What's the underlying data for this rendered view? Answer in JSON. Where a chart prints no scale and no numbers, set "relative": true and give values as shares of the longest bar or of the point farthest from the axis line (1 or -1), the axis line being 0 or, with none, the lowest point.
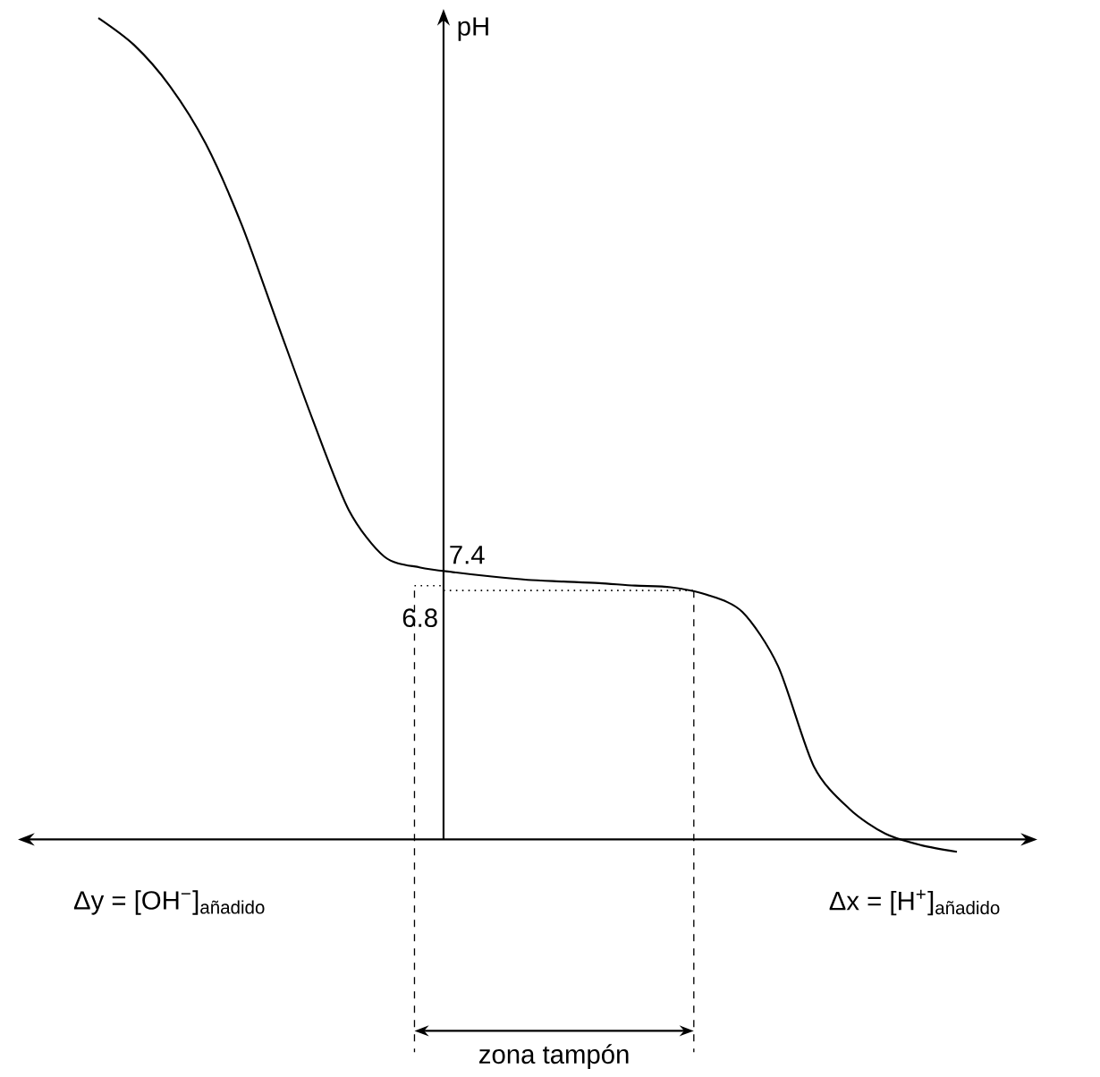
{
  "chart_data": {
    "type": "line",
    "ylabel": "pH",
    "relative": true,
    "categories": [
      null,
      null,
      null,
      null,
      null,
      null,
      null,
      null,
      null,
      null,
      null,
      null,
      null,
      null,
      null,
      null,
      null,
      null,
      null,
      null,
      null,
      null,
      null,
      null,
      null
    ],
    "values": [
      1.0,
      0.967,
      0.917,
      0.847,
      0.749,
      0.629,
      0.51,
      0.401,
      0.344,
      0.331,
      0.325,
      0.32,
      0.316,
      0.314,
      0.312,
      0.309,
      0.307,
      0.298,
      0.277,
      0.211,
      0.089,
      0.037,
      0.007,
      -0.007,
      -0.015
    ],
    "color": "#000000",
    "marker": "none",
    "line_style": "solid",
    "ref_lines": [
      {
        "axis": "y",
        "value": 0.303,
        "line_style": "dotted"
      }
    ],
    "annotations": [
      "Δy = [OH$^{−}$]$_{añadido}$",
      "Δx = [H$^{+}$]$_{añadido}$",
      "zona tampón",
      "7.4",
      "6.8"
    ]
  }
}
